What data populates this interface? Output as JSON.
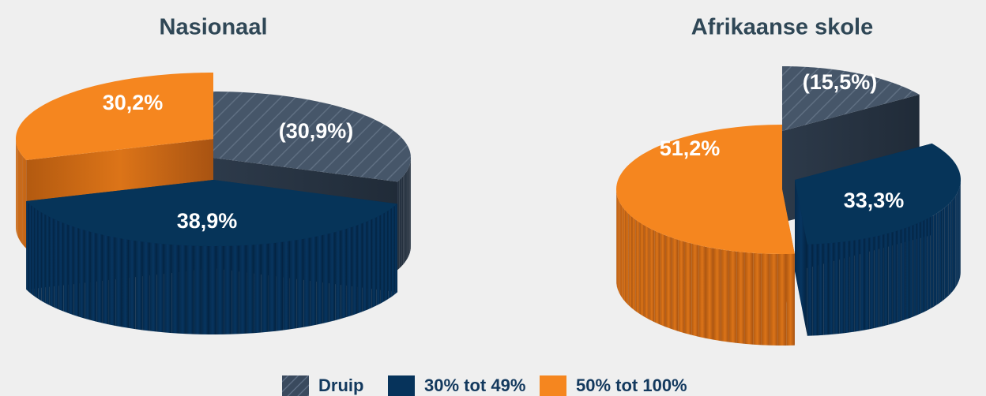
{
  "chart_data": [
    {
      "type": "pie",
      "title": "Nasionaal",
      "slices": [
        {
          "series": "Druip",
          "value": 30.9,
          "label": "(30,9%)"
        },
        {
          "series": "30% tot 49%",
          "value": 38.9,
          "label": "38,9%"
        },
        {
          "series": "50% tot 100%",
          "value": 30.2,
          "label": "30,2%"
        }
      ]
    },
    {
      "type": "pie",
      "title": "Afrikaanse skole",
      "slices": [
        {
          "series": "Druip",
          "value": 15.5,
          "label": "(15,5%)"
        },
        {
          "series": "30% tot 49%",
          "value": 33.3,
          "label": "33,3%"
        },
        {
          "series": "50% tot 100%",
          "value": 51.2,
          "label": "51,2%"
        }
      ]
    }
  ],
  "legend": {
    "placement": "bottom",
    "items": [
      {
        "label": "Druip",
        "color": "#3a4a5e",
        "pattern": "hatched"
      },
      {
        "label": "30% tot 49%",
        "color": "#06335b",
        "pattern": "solid"
      },
      {
        "label": "50% tot 100%",
        "color": "#f5861f",
        "pattern": "solid"
      }
    ]
  },
  "colors": {
    "background": "#efefef",
    "title": "#2f4756",
    "druip": "#3a4a5e",
    "mid": "#06335b",
    "high": "#f5861f"
  }
}
